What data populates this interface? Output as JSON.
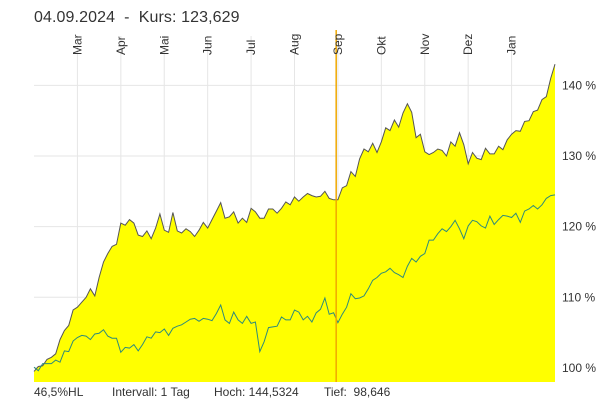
{
  "header": {
    "date": "04.09.2024",
    "separator": "-",
    "price_label": "Kurs:",
    "price_value": "123,629"
  },
  "footer": {
    "range": "46,5%HL",
    "interval": "Intervall: 1 Tag",
    "high": "Hoch: 144,5324",
    "low": "Tief:  98,646"
  },
  "colors": {
    "area": "#ffff00",
    "line": "#555555",
    "benchmark": "#2e8b7a",
    "cursor": "#f0a800",
    "grid": "#e6e6e6"
  },
  "chart_data": {
    "type": "area",
    "xlabel": "",
    "ylabel": "",
    "x_tick_labels": [
      "Mar",
      "Apr",
      "Mai",
      "Jun",
      "Jul",
      "Aug",
      "Sep",
      "Okt",
      "Nov",
      "Dez",
      "Jan"
    ],
    "y_tick_labels": [
      "100 %",
      "110 %",
      "120 %",
      "130 %",
      "140 %"
    ],
    "y_ticks": [
      100,
      110,
      120,
      130,
      140
    ],
    "ylim": [
      98.0,
      147.0
    ],
    "x_axis": "month index (0 = start of Feb, 1 = start of Mar ... 12 = end of Jan)",
    "xlim": [
      0.0,
      12.0
    ],
    "grid": true,
    "cursor": {
      "x": 6.96,
      "date": "04.09.2024",
      "value": 123.629
    },
    "series": [
      {
        "points": [
          [
            0.0,
            99.5
          ],
          [
            0.1,
            100.2
          ],
          [
            0.2,
            100.3
          ],
          [
            0.3,
            101.2
          ],
          [
            0.4,
            101.5
          ],
          [
            0.5,
            102.0
          ],
          [
            0.6,
            104.0
          ],
          [
            0.7,
            105.3
          ],
          [
            0.8,
            106.0
          ],
          [
            0.9,
            108.2
          ],
          [
            1.0,
            108.6
          ],
          [
            1.1,
            109.3
          ],
          [
            1.2,
            110.0
          ],
          [
            1.3,
            111.2
          ],
          [
            1.4,
            110.2
          ],
          [
            1.5,
            112.8
          ],
          [
            1.6,
            115.0
          ],
          [
            1.7,
            116.2
          ],
          [
            1.8,
            117.2
          ],
          [
            1.9,
            117.5
          ],
          [
            2.0,
            120.5
          ],
          [
            2.1,
            120.2
          ],
          [
            2.2,
            121.0
          ],
          [
            2.3,
            120.5
          ],
          [
            2.4,
            118.8
          ],
          [
            2.5,
            118.6
          ],
          [
            2.6,
            119.4
          ],
          [
            2.7,
            118.3
          ],
          [
            2.8,
            119.8
          ],
          [
            2.9,
            121.8
          ],
          [
            3.0,
            119.5
          ],
          [
            3.1,
            119.2
          ],
          [
            3.2,
            122.0
          ],
          [
            3.3,
            119.4
          ],
          [
            3.4,
            119.1
          ],
          [
            3.5,
            119.7
          ],
          [
            3.6,
            119.3
          ],
          [
            3.7,
            118.6
          ],
          [
            3.8,
            119.5
          ],
          [
            3.9,
            120.6
          ],
          [
            4.0,
            119.8
          ],
          [
            4.1,
            121.0
          ],
          [
            4.2,
            122.2
          ],
          [
            4.3,
            123.4
          ],
          [
            4.4,
            121.2
          ],
          [
            4.5,
            121.4
          ],
          [
            4.6,
            122.1
          ],
          [
            4.7,
            120.5
          ],
          [
            4.8,
            121.2
          ],
          [
            4.9,
            120.6
          ],
          [
            5.0,
            122.6
          ],
          [
            5.1,
            122.1
          ],
          [
            5.2,
            121.2
          ],
          [
            5.3,
            121.2
          ],
          [
            5.4,
            122.5
          ],
          [
            5.5,
            122.5
          ],
          [
            5.6,
            121.9
          ],
          [
            5.7,
            122.6
          ],
          [
            5.8,
            123.5
          ],
          [
            5.9,
            123.1
          ],
          [
            6.0,
            124.2
          ],
          [
            6.1,
            123.6
          ],
          [
            6.2,
            124.2
          ],
          [
            6.3,
            124.7
          ],
          [
            6.4,
            124.4
          ],
          [
            6.5,
            124.2
          ],
          [
            6.6,
            124.3
          ],
          [
            6.7,
            125.0
          ],
          [
            6.8,
            124.0
          ],
          [
            6.9,
            123.8
          ],
          [
            7.0,
            123.8
          ],
          [
            7.1,
            125.5
          ],
          [
            7.2,
            125.8
          ],
          [
            7.3,
            127.8
          ],
          [
            7.4,
            127.1
          ],
          [
            7.5,
            129.6
          ],
          [
            7.6,
            131.0
          ],
          [
            7.7,
            130.6
          ],
          [
            7.8,
            131.8
          ],
          [
            7.9,
            130.5
          ],
          [
            8.0,
            132.0
          ],
          [
            8.1,
            134.0
          ],
          [
            8.2,
            133.6
          ],
          [
            8.3,
            135.1
          ],
          [
            8.4,
            134.1
          ],
          [
            8.5,
            136.1
          ],
          [
            8.6,
            137.4
          ],
          [
            8.7,
            136.2
          ],
          [
            8.8,
            132.6
          ],
          [
            8.9,
            133.1
          ],
          [
            9.0,
            130.6
          ],
          [
            9.1,
            130.2
          ],
          [
            9.2,
            130.5
          ],
          [
            9.3,
            131.0
          ],
          [
            9.4,
            130.8
          ],
          [
            9.5,
            130.0
          ],
          [
            9.6,
            132.0
          ],
          [
            9.7,
            131.4
          ],
          [
            9.8,
            133.3
          ],
          [
            9.9,
            131.6
          ],
          [
            10.0,
            128.9
          ],
          [
            10.1,
            130.5
          ],
          [
            10.2,
            129.7
          ],
          [
            10.3,
            129.5
          ],
          [
            10.4,
            131.1
          ],
          [
            10.5,
            130.3
          ],
          [
            10.6,
            130.3
          ],
          [
            10.7,
            131.4
          ],
          [
            10.8,
            130.9
          ],
          [
            10.9,
            132.3
          ],
          [
            11.0,
            133.1
          ],
          [
            11.1,
            133.6
          ],
          [
            11.2,
            133.5
          ],
          [
            11.3,
            134.9
          ],
          [
            11.4,
            135.0
          ],
          [
            11.5,
            136.3
          ],
          [
            11.6,
            136.5
          ],
          [
            11.7,
            138.0
          ],
          [
            11.8,
            138.4
          ],
          [
            11.9,
            141.0
          ],
          [
            12.0,
            143.0
          ]
        ]
      },
      {
        "points": [
          [
            0.0,
            100.1
          ],
          [
            0.1,
            99.6
          ],
          [
            0.2,
            100.6
          ],
          [
            0.3,
            100.6
          ],
          [
            0.4,
            100.6
          ],
          [
            0.5,
            101.1
          ],
          [
            0.6,
            100.8
          ],
          [
            0.7,
            102.4
          ],
          [
            0.8,
            102.3
          ],
          [
            0.9,
            103.8
          ],
          [
            1.0,
            104.3
          ],
          [
            1.1,
            104.6
          ],
          [
            1.2,
            104.5
          ],
          [
            1.3,
            104.0
          ],
          [
            1.4,
            104.8
          ],
          [
            1.5,
            104.9
          ],
          [
            1.6,
            105.4
          ],
          [
            1.7,
            104.5
          ],
          [
            1.8,
            104.2
          ],
          [
            1.9,
            104.2
          ],
          [
            2.0,
            102.2
          ],
          [
            2.1,
            102.9
          ],
          [
            2.2,
            102.8
          ],
          [
            2.3,
            103.3
          ],
          [
            2.4,
            102.4
          ],
          [
            2.5,
            103.3
          ],
          [
            2.6,
            104.4
          ],
          [
            2.7,
            104.2
          ],
          [
            2.8,
            105.1
          ],
          [
            2.9,
            105.0
          ],
          [
            3.0,
            105.5
          ],
          [
            3.1,
            104.6
          ],
          [
            3.2,
            105.6
          ],
          [
            3.3,
            105.9
          ],
          [
            3.4,
            106.1
          ],
          [
            3.5,
            106.5
          ],
          [
            3.6,
            106.9
          ],
          [
            3.7,
            107.0
          ],
          [
            3.8,
            106.6
          ],
          [
            3.9,
            107.0
          ],
          [
            4.0,
            106.9
          ],
          [
            4.1,
            106.7
          ],
          [
            4.2,
            107.7
          ],
          [
            4.3,
            108.9
          ],
          [
            4.4,
            106.8
          ],
          [
            4.5,
            106.3
          ],
          [
            4.6,
            107.9
          ],
          [
            4.7,
            106.8
          ],
          [
            4.8,
            106.3
          ],
          [
            4.9,
            107.3
          ],
          [
            5.0,
            106.3
          ],
          [
            5.1,
            106.5
          ],
          [
            5.2,
            102.3
          ],
          [
            5.3,
            103.7
          ],
          [
            5.4,
            105.7
          ],
          [
            5.5,
            105.8
          ],
          [
            5.6,
            105.9
          ],
          [
            5.7,
            107.2
          ],
          [
            5.8,
            106.8
          ],
          [
            5.9,
            106.8
          ],
          [
            6.0,
            108.2
          ],
          [
            6.1,
            107.9
          ],
          [
            6.2,
            106.8
          ],
          [
            6.3,
            107.3
          ],
          [
            6.4,
            106.5
          ],
          [
            6.5,
            107.8
          ],
          [
            6.6,
            108.3
          ],
          [
            6.7,
            109.9
          ],
          [
            6.8,
            107.6
          ],
          [
            6.9,
            107.8
          ],
          [
            7.0,
            106.4
          ],
          [
            7.1,
            107.6
          ],
          [
            7.2,
            108.6
          ],
          [
            7.3,
            110.5
          ],
          [
            7.4,
            109.8
          ],
          [
            7.5,
            109.9
          ],
          [
            7.6,
            110.2
          ],
          [
            7.7,
            111.2
          ],
          [
            7.8,
            112.4
          ],
          [
            7.9,
            112.8
          ],
          [
            8.0,
            113.4
          ],
          [
            8.1,
            113.6
          ],
          [
            8.2,
            114.1
          ],
          [
            8.3,
            113.5
          ],
          [
            8.4,
            113.2
          ],
          [
            8.5,
            112.8
          ],
          [
            8.6,
            114.4
          ],
          [
            8.7,
            115.5
          ],
          [
            8.8,
            115.0
          ],
          [
            8.9,
            115.8
          ],
          [
            9.0,
            116.2
          ],
          [
            9.1,
            118.1
          ],
          [
            9.2,
            118.1
          ],
          [
            9.3,
            119.0
          ],
          [
            9.4,
            119.7
          ],
          [
            9.5,
            119.3
          ],
          [
            9.6,
            120.0
          ],
          [
            9.7,
            120.9
          ],
          [
            9.8,
            119.7
          ],
          [
            9.9,
            118.3
          ],
          [
            10.0,
            120.1
          ],
          [
            10.1,
            120.9
          ],
          [
            10.2,
            120.7
          ],
          [
            10.3,
            120.1
          ],
          [
            10.4,
            119.8
          ],
          [
            10.5,
            121.5
          ],
          [
            10.6,
            120.3
          ],
          [
            10.7,
            121.0
          ],
          [
            10.8,
            121.6
          ],
          [
            10.9,
            121.5
          ],
          [
            11.0,
            121.3
          ],
          [
            11.1,
            121.9
          ],
          [
            11.2,
            120.6
          ],
          [
            11.3,
            122.2
          ],
          [
            11.4,
            122.5
          ],
          [
            11.5,
            123.0
          ],
          [
            11.6,
            122.5
          ],
          [
            11.7,
            123.1
          ],
          [
            11.8,
            124.0
          ],
          [
            11.9,
            124.4
          ],
          [
            12.0,
            124.5
          ]
        ]
      }
    ]
  }
}
